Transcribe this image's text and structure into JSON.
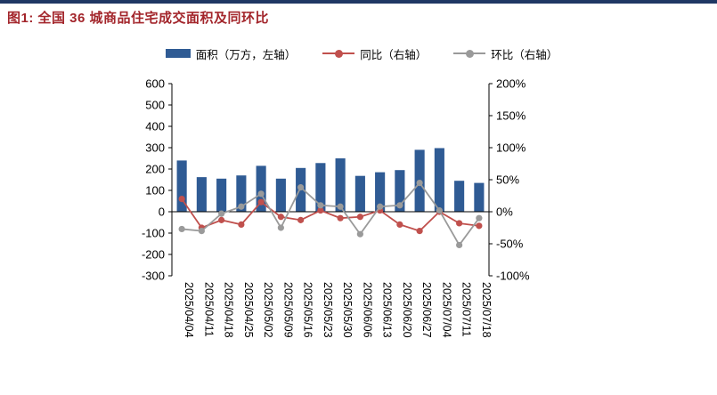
{
  "figure": {
    "title": "图1: 全国 36 城商品住宅成交面积及同环比",
    "title_color": "#A3262C",
    "top_rule_color": "#1F3864"
  },
  "chart_data": {
    "type": "combo",
    "categories": [
      "2025/04/04",
      "2025/04/11",
      "2025/04/18",
      "2025/04/25",
      "2025/05/02",
      "2025/05/09",
      "2025/05/16",
      "2025/05/23",
      "2025/05/30",
      "2025/06/06",
      "2025/06/13",
      "2025/06/20",
      "2025/06/27",
      "2025/07/04",
      "2025/07/11",
      "2025/07/18"
    ],
    "series": [
      {
        "name": "面积（万方，左轴）",
        "type": "bar",
        "axis": "left",
        "color": "#2F5B94",
        "values": [
          240,
          162,
          155,
          170,
          215,
          155,
          205,
          228,
          250,
          168,
          185,
          195,
          290,
          298,
          145,
          135
        ]
      },
      {
        "name": "同比（右轴）",
        "type": "line",
        "axis": "right",
        "color": "#C0504D",
        "unit": "%",
        "values": [
          20,
          -25,
          -13,
          -20,
          15,
          -8,
          -13,
          2,
          -10,
          -8,
          2,
          -20,
          -30,
          0,
          -18,
          -22
        ]
      },
      {
        "name": "环比（右轴）",
        "type": "line",
        "axis": "right",
        "color": "#9A9A9A",
        "unit": "%",
        "values": [
          -27,
          -30,
          -3,
          8,
          28,
          -25,
          38,
          10,
          8,
          -35,
          8,
          10,
          45,
          2,
          -52,
          -10
        ]
      }
    ],
    "left_axis": {
      "label": "万方",
      "min": -300,
      "max": 600,
      "step": 100
    },
    "right_axis": {
      "unit": "%",
      "min": -100,
      "max": 200,
      "step": 50
    },
    "grid": false,
    "legend_position": "top"
  }
}
